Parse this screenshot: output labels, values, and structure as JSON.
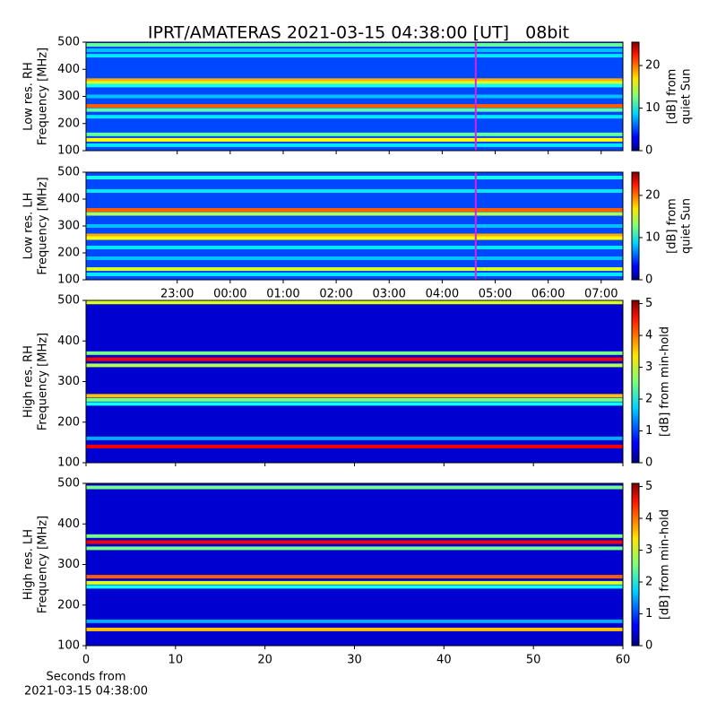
{
  "chart_data": [
    {
      "type": "heatmap",
      "title": "IPRT/AMATERAS 2021-03-15 04:38:00 [UT]   08bit",
      "ylabel": [
        "Low res. RH",
        "Frequency [MHz]"
      ],
      "ylim": [
        100,
        500
      ],
      "yticks": [
        100,
        200,
        300,
        400,
        500
      ],
      "xlim": [
        -2.72,
        7.41
      ],
      "marker_x": 4.633,
      "marker_color": "#e020e0",
      "clim": [
        0,
        25.5
      ],
      "cticks": [
        0,
        10,
        20
      ],
      "clabel": [
        "[dB] from",
        "quiet Sun"
      ],
      "base": 5,
      "bands": [
        {
          "y": 490,
          "value": 12
        },
        {
          "y": 470,
          "value": 8
        },
        {
          "y": 450,
          "value": 9
        },
        {
          "y": 360,
          "value": 18
        },
        {
          "y": 350,
          "value": 15
        },
        {
          "y": 340,
          "value": 10
        },
        {
          "y": 300,
          "value": 8
        },
        {
          "y": 265,
          "value": 20
        },
        {
          "y": 250,
          "value": 12
        },
        {
          "y": 225,
          "value": 9
        },
        {
          "y": 160,
          "value": 12
        },
        {
          "y": 140,
          "value": 16
        },
        {
          "y": 120,
          "value": 9
        }
      ]
    },
    {
      "type": "heatmap",
      "ylabel": [
        "Low res. LH",
        "Frequency [MHz]"
      ],
      "ylim": [
        100,
        500
      ],
      "yticks": [
        100,
        200,
        300,
        400,
        500
      ],
      "xlim": [
        -2.72,
        7.41
      ],
      "xticks": [
        {
          "value": -1,
          "label": "23:00"
        },
        {
          "value": 0,
          "label": "00:00"
        },
        {
          "value": 1,
          "label": "01:00"
        },
        {
          "value": 2,
          "label": "02:00"
        },
        {
          "value": 3,
          "label": "03:00"
        },
        {
          "value": 4,
          "label": "04:00"
        },
        {
          "value": 5,
          "label": "05:00"
        },
        {
          "value": 6,
          "label": "06:00"
        },
        {
          "value": 7,
          "label": "07:00"
        }
      ],
      "marker_x": 4.633,
      "marker_color": "#e020e0",
      "clim": [
        0,
        25.5
      ],
      "cticks": [
        0,
        10,
        20
      ],
      "clabel": [
        "[dB] from",
        "quiet Sun"
      ],
      "base": 5,
      "bands": [
        {
          "y": 480,
          "value": 10
        },
        {
          "y": 430,
          "value": 9
        },
        {
          "y": 360,
          "value": 20
        },
        {
          "y": 345,
          "value": 14
        },
        {
          "y": 300,
          "value": 8
        },
        {
          "y": 265,
          "value": 18
        },
        {
          "y": 255,
          "value": 16
        },
        {
          "y": 220,
          "value": 9
        },
        {
          "y": 180,
          "value": 8
        },
        {
          "y": 140,
          "value": 15
        },
        {
          "y": 120,
          "value": 9
        }
      ]
    },
    {
      "type": "heatmap",
      "ylabel": [
        "High res. RH",
        "Frequency [MHz]"
      ],
      "ylim": [
        100,
        500
      ],
      "yticks": [
        100,
        200,
        300,
        400,
        500
      ],
      "xlim": [
        0,
        60
      ],
      "clim": [
        0,
        5.1
      ],
      "cticks": [
        0,
        1,
        2,
        3,
        4,
        5
      ],
      "clabel": [
        "[dB] from min-hold"
      ],
      "base": 0.4,
      "bands": [
        {
          "y": 495,
          "value": 3
        },
        {
          "y": 370,
          "value": 2.5
        },
        {
          "y": 355,
          "value": 4.5
        },
        {
          "y": 340,
          "value": 2.8
        },
        {
          "y": 265,
          "value": 3.5
        },
        {
          "y": 255,
          "value": 2.5
        },
        {
          "y": 245,
          "value": 2
        },
        {
          "y": 160,
          "value": 1.5
        },
        {
          "y": 140,
          "value": 4.5
        }
      ]
    },
    {
      "type": "heatmap",
      "ylabel": [
        "High res. LH",
        "Frequency [MHz]"
      ],
      "ylim": [
        100,
        500
      ],
      "yticks": [
        100,
        200,
        300,
        400,
        500
      ],
      "xlim": [
        0,
        60
      ],
      "xticks": [
        0,
        10,
        20,
        30,
        40,
        50,
        60
      ],
      "xlabel": [
        "Seconds from",
        "2021-03-15 04:38:00"
      ],
      "clim": [
        0,
        5.1
      ],
      "cticks": [
        0,
        1,
        2,
        3,
        4,
        5
      ],
      "clabel": [
        "[dB] from min-hold"
      ],
      "base": 0.4,
      "bands": [
        {
          "y": 490,
          "value": 2.5
        },
        {
          "y": 370,
          "value": 2.5
        },
        {
          "y": 355,
          "value": 4.5
        },
        {
          "y": 340,
          "value": 2.5
        },
        {
          "y": 270,
          "value": 4
        },
        {
          "y": 255,
          "value": 3
        },
        {
          "y": 245,
          "value": 2
        },
        {
          "y": 160,
          "value": 1.5
        },
        {
          "y": 140,
          "value": 3.5
        }
      ]
    }
  ]
}
